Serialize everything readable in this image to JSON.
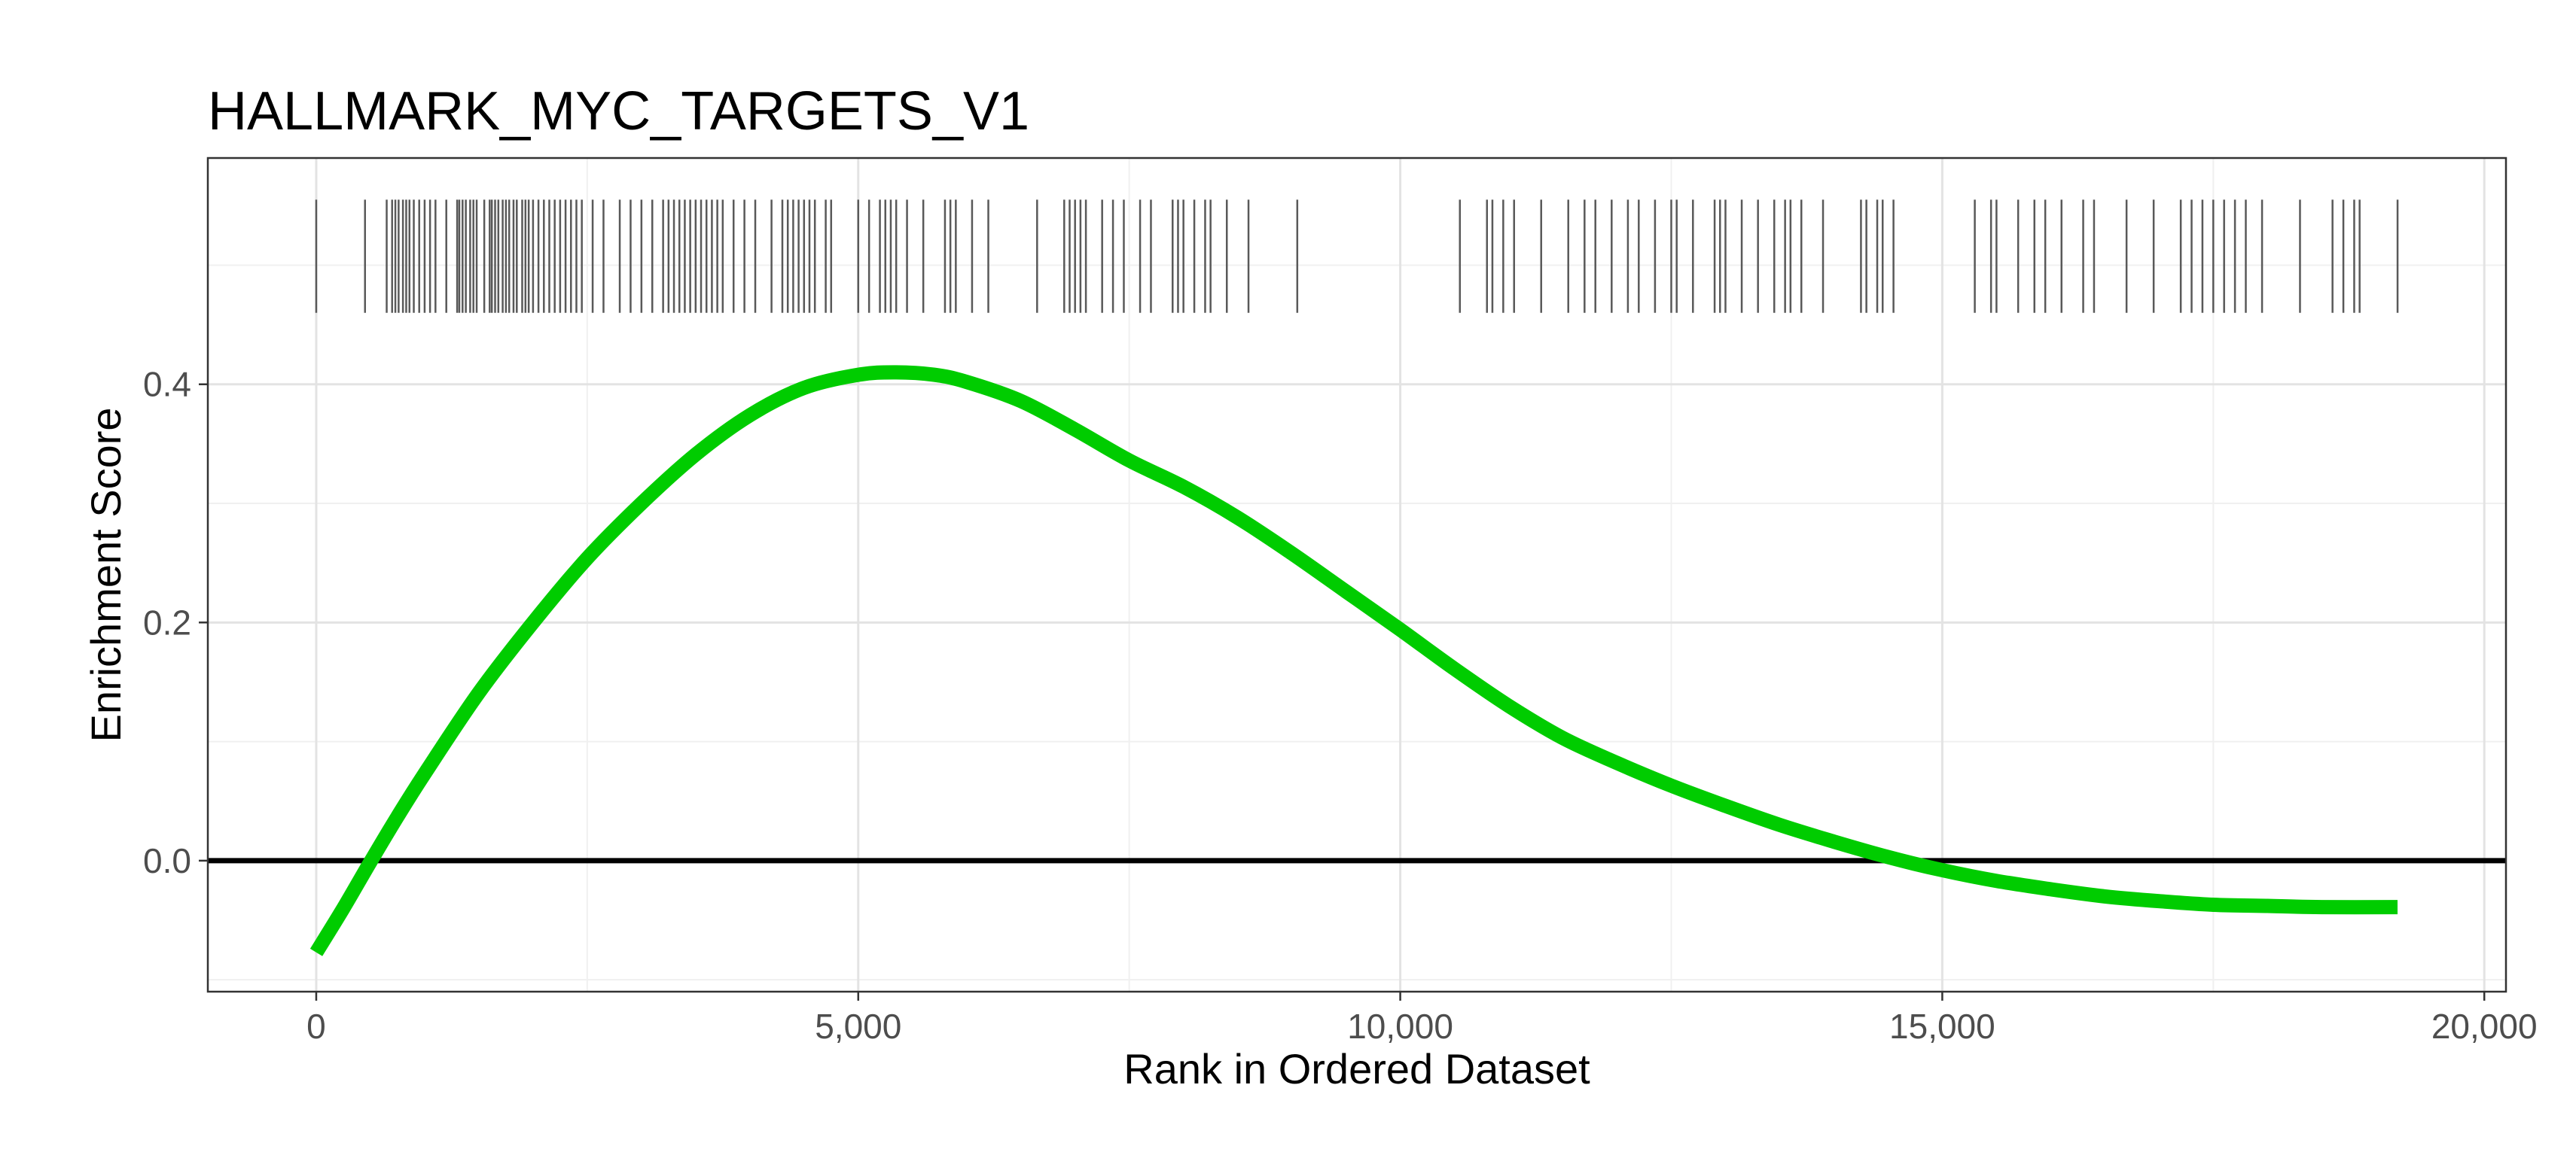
{
  "chart_data": {
    "type": "line",
    "title": "HALLMARK_MYC_TARGETS_V1",
    "xlabel": "Rank in Ordered Dataset",
    "ylabel": "Enrichment Score",
    "xlim": [
      -1000,
      20200
    ],
    "ylim": [
      -0.11,
      0.59
    ],
    "xticks": [
      0,
      5000,
      10000,
      15000,
      20000
    ],
    "xtick_labels": [
      "0",
      "5,000",
      "10,000",
      "15,000",
      "20,000"
    ],
    "yticks": [
      0.0,
      0.2,
      0.4
    ],
    "ytick_labels": [
      "0.0",
      "0.2",
      "0.4"
    ],
    "grid": true,
    "zero_line": 0.0,
    "line_color": "#00cc00",
    "rug_color": "#595959",
    "rug_range": [
      0.46,
      0.555
    ],
    "series": [
      {
        "x": [
          0,
          250,
          500,
          750,
          1000,
          1500,
          2000,
          2500,
          3000,
          3500,
          4000,
          4500,
          5000,
          5350,
          5700,
          6000,
          6500,
          7000,
          7500,
          8000,
          8500,
          9000,
          9500,
          10000,
          10500,
          11000,
          11500,
          12000,
          12500,
          13000,
          13500,
          14000,
          14500,
          15000,
          15500,
          16000,
          16500,
          17000,
          17500,
          18000,
          18500,
          19200
        ],
        "y": [
          -0.077,
          -0.04,
          -0.001,
          0.037,
          0.073,
          0.141,
          0.2,
          0.254,
          0.3,
          0.341,
          0.374,
          0.397,
          0.408,
          0.41,
          0.408,
          0.402,
          0.386,
          0.362,
          0.336,
          0.314,
          0.288,
          0.258,
          0.226,
          0.194,
          0.161,
          0.13,
          0.103,
          0.082,
          0.063,
          0.046,
          0.03,
          0.016,
          0.003,
          -0.008,
          -0.017,
          -0.024,
          -0.03,
          -0.034,
          -0.037,
          -0.038,
          -0.039,
          -0.039
        ]
      }
    ],
    "rug": [
      0,
      450,
      650,
      700,
      730,
      760,
      800,
      830,
      860,
      900,
      950,
      1000,
      1050,
      1100,
      1200,
      1300,
      1320,
      1350,
      1380,
      1420,
      1450,
      1480,
      1550,
      1600,
      1620,
      1650,
      1680,
      1720,
      1750,
      1780,
      1820,
      1850,
      1900,
      1930,
      1960,
      2000,
      2050,
      2100,
      2150,
      2200,
      2250,
      2300,
      2350,
      2400,
      2450,
      2550,
      2650,
      2800,
      2900,
      3000,
      3100,
      3200,
      3250,
      3300,
      3350,
      3400,
      3450,
      3500,
      3550,
      3600,
      3650,
      3700,
      3750,
      3850,
      3950,
      4050,
      4200,
      4300,
      4350,
      4400,
      4450,
      4500,
      4550,
      4600,
      4700,
      4750,
      5000,
      5100,
      5200,
      5250,
      5300,
      5350,
      5450,
      5600,
      5800,
      5850,
      5900,
      6050,
      6200,
      6650,
      6900,
      6950,
      7000,
      7050,
      7100,
      7250,
      7350,
      7450,
      7600,
      7700,
      7900,
      7950,
      8000,
      8100,
      8200,
      8250,
      8400,
      8600,
      9050,
      10550,
      10800,
      10850,
      10950,
      11050,
      11300,
      11550,
      11700,
      11800,
      11950,
      12100,
      12200,
      12350,
      12500,
      12550,
      12700,
      12900,
      12950,
      13000,
      13150,
      13300,
      13450,
      13550,
      13600,
      13700,
      13900,
      14250,
      14300,
      14400,
      14450,
      14550,
      15300,
      15450,
      15500,
      15700,
      15850,
      15950,
      16100,
      16300,
      16400,
      16700,
      16950,
      17200,
      17300,
      17400,
      17500,
      17600,
      17700,
      17800,
      17950,
      18300,
      18600,
      18700,
      18800,
      18850,
      19200
    ]
  }
}
